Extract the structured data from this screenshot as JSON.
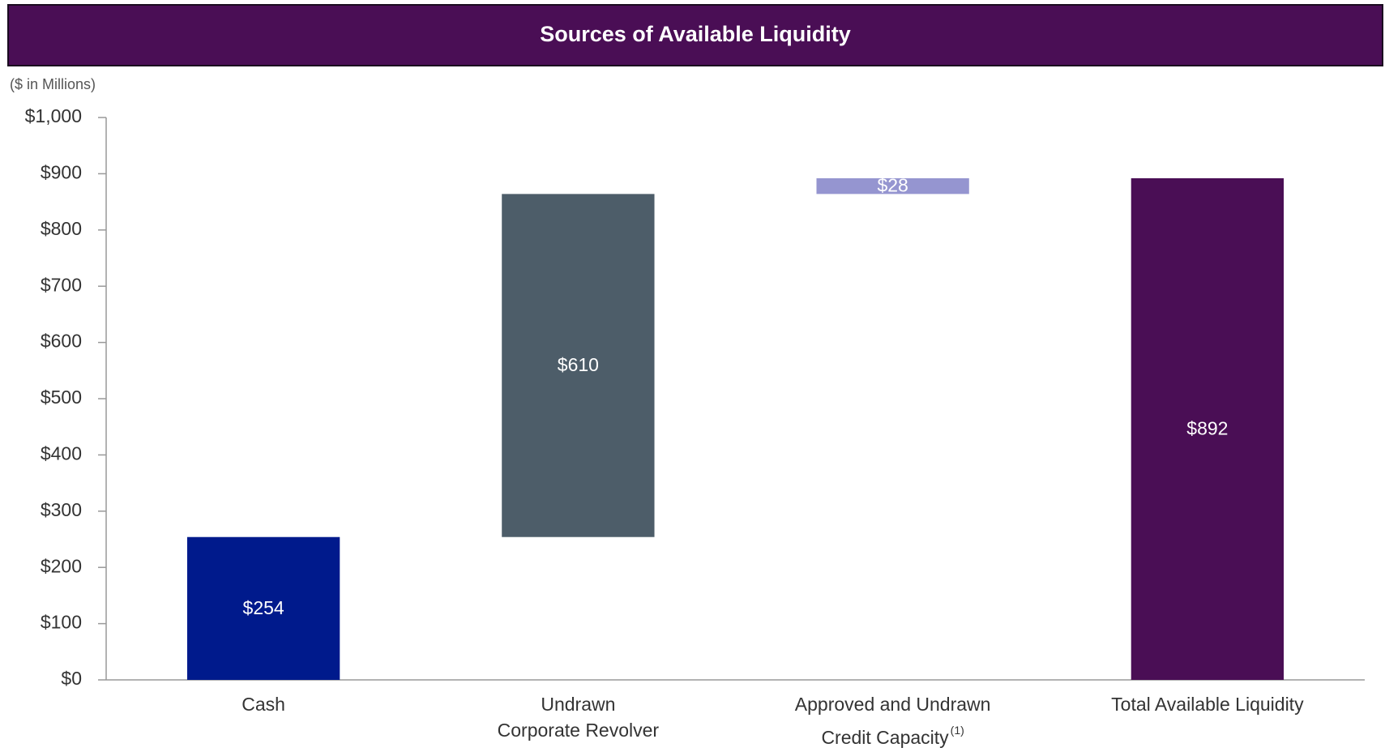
{
  "chart_data": {
    "type": "waterfall",
    "title": "Sources of Available Liquidity",
    "subtitle": "($ in Millions)",
    "categories": [
      "Cash",
      "Undrawn\nCorporate Revolver",
      "Approved and Undrawn\nCredit Capacity",
      "Total Available Liquidity"
    ],
    "category_notes": [
      null,
      null,
      "(1)",
      null
    ],
    "values": [
      254,
      610,
      28,
      892
    ],
    "value_labels": [
      "$254",
      "$610",
      "$28",
      "$892"
    ],
    "is_total": [
      false,
      false,
      false,
      true
    ],
    "colors": [
      "#001a8c",
      "#4d5d69",
      "#9595d0",
      "#4a0e55"
    ],
    "ylim": [
      0,
      1000
    ],
    "yticks": [
      {
        "value": 0,
        "label": "$0"
      },
      {
        "value": 100,
        "label": "$100"
      },
      {
        "value": 200,
        "label": "$200"
      },
      {
        "value": 300,
        "label": "$300"
      },
      {
        "value": 400,
        "label": "$400"
      },
      {
        "value": 500,
        "label": "$500"
      },
      {
        "value": 600,
        "label": "$600"
      },
      {
        "value": 700,
        "label": "$700"
      },
      {
        "value": 800,
        "label": "$800"
      },
      {
        "value": 900,
        "label": "$900"
      },
      {
        "value": 1000,
        "label": "$1,000"
      }
    ],
    "grid": false
  }
}
